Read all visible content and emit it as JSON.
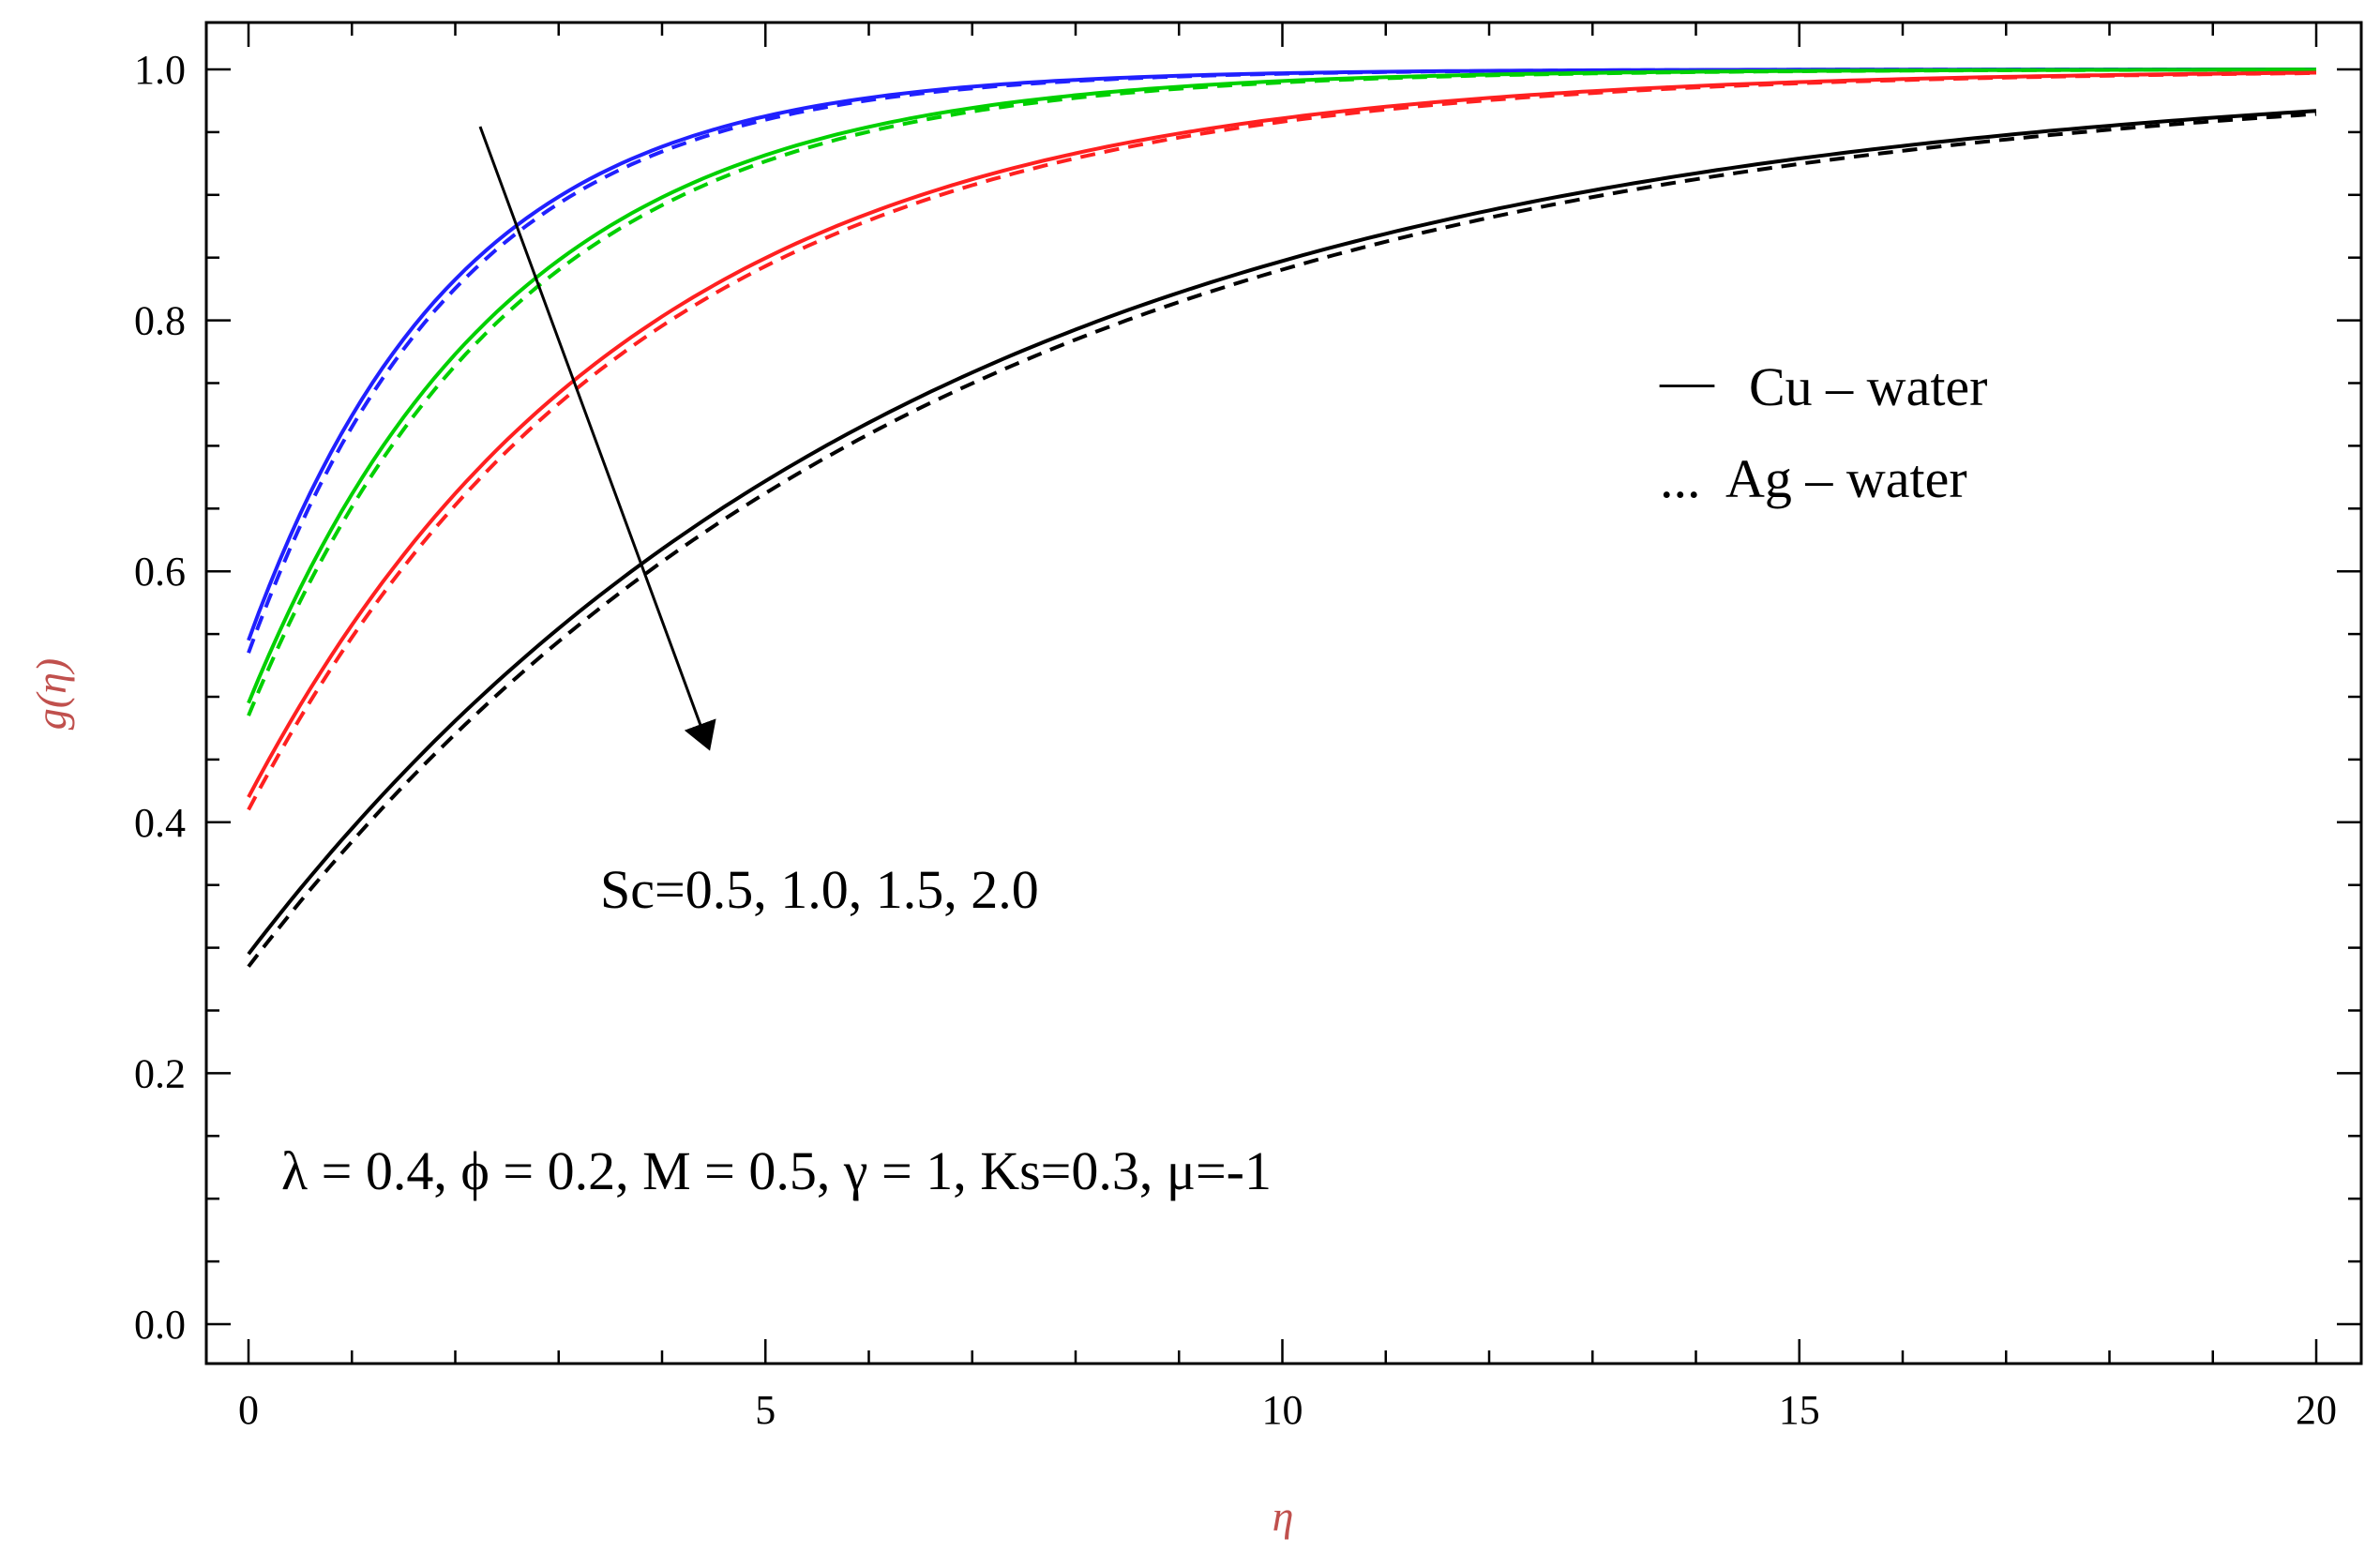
{
  "chart_data": {
    "type": "line",
    "xlabel": "η",
    "ylabel": "g(η)",
    "xlim": [
      0,
      20
    ],
    "ylim": [
      0,
      1
    ],
    "x_ticks": [
      "0",
      "5",
      "10",
      "15",
      "20"
    ],
    "y_ticks": [
      "0.0",
      "0.2",
      "0.4",
      "0.6",
      "0.8",
      "1.0"
    ],
    "grid": false,
    "legend": {
      "position": "right",
      "entries": [
        {
          "marker": "—",
          "label": "Cu – water",
          "style": "solid"
        },
        {
          "marker": "...",
          "label": "Ag – water",
          "style": "dashed"
        }
      ]
    },
    "annotations": {
      "sc": "Sc=0.5, 1.0, 1.5, 2.0",
      "params": "λ = 0.4, ϕ = 0.2, M = 0.5, γ = 1, Ks=0.3, μ=-1"
    },
    "series": [
      {
        "color": "#2020ff",
        "style": "solid",
        "sc": 0.5,
        "g0": 0.545,
        "k": 0.5
      },
      {
        "color": "#2020ff",
        "style": "dashed",
        "sc": 0.5,
        "g0": 0.535,
        "k": 0.49
      },
      {
        "color": "#00d000",
        "style": "solid",
        "sc": 1.0,
        "g0": 0.495,
        "k": 0.4
      },
      {
        "color": "#00d000",
        "style": "dashed",
        "sc": 1.0,
        "g0": 0.485,
        "k": 0.39
      },
      {
        "color": "#ff2020",
        "style": "solid",
        "sc": 1.5,
        "g0": 0.42,
        "k": 0.27
      },
      {
        "color": "#ff2020",
        "style": "dashed",
        "sc": 1.5,
        "g0": 0.41,
        "k": 0.265
      },
      {
        "color": "#000000",
        "style": "solid",
        "sc": 2.0,
        "g0": 0.295,
        "k": 0.153
      },
      {
        "color": "#000000",
        "style": "dashed",
        "sc": 2.0,
        "g0": 0.285,
        "k": 0.15
      }
    ]
  }
}
